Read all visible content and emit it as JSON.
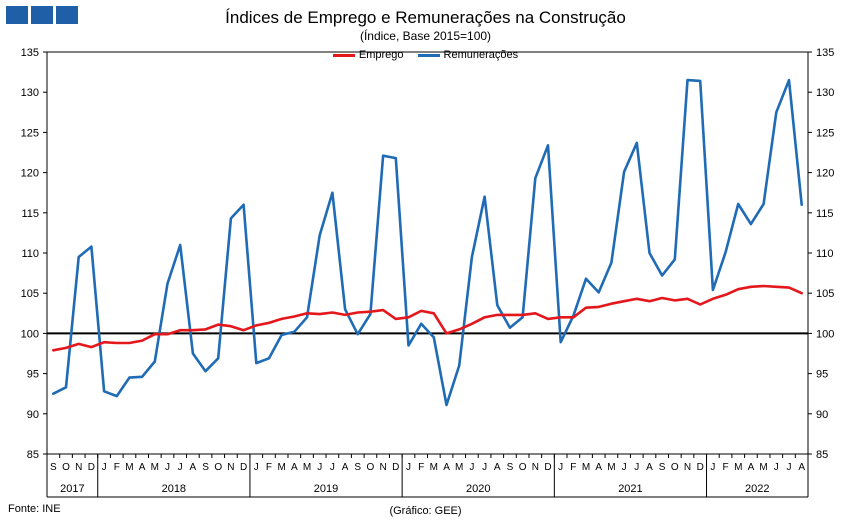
{
  "header": {
    "title": "Índices de Emprego e Remunerações na Construção",
    "subtitle": "(Índice, Base 2015=100)",
    "logo_colors": [
      "#1f5fa8",
      "#1f5fa8",
      "#1f5fa8"
    ]
  },
  "footer": {
    "source": "Fonte: INE",
    "credit": "(Gráfico: GEE)"
  },
  "chart_data": {
    "type": "line",
    "title": "Índices de Emprego e Remunerações na Construção",
    "subtitle": "(Índice, Base 2015=100)",
    "ylim": [
      85,
      135
    ],
    "yticks": [
      85,
      90,
      95,
      100,
      105,
      110,
      115,
      120,
      125,
      130,
      135
    ],
    "reference_line": 100,
    "legend_placement": "top-center",
    "grid": false,
    "months": [
      "S",
      "O",
      "N",
      "D",
      "J",
      "F",
      "M",
      "A",
      "M",
      "J",
      "J",
      "A",
      "S",
      "O",
      "N",
      "D",
      "J",
      "F",
      "M",
      "A",
      "M",
      "J",
      "J",
      "A",
      "S",
      "O",
      "N",
      "D",
      "J",
      "F",
      "M",
      "A",
      "M",
      "J",
      "J",
      "A",
      "S",
      "O",
      "N",
      "D",
      "J",
      "F",
      "M",
      "A",
      "M",
      "J",
      "J",
      "A",
      "S",
      "O",
      "N",
      "D",
      "J",
      "F",
      "M",
      "A",
      "M",
      "J",
      "J",
      "A"
    ],
    "years": [
      {
        "label": "2017",
        "start": 0,
        "count": 4
      },
      {
        "label": "2018",
        "start": 4,
        "count": 12
      },
      {
        "label": "2019",
        "start": 16,
        "count": 12
      },
      {
        "label": "2020",
        "start": 28,
        "count": 12
      },
      {
        "label": "2021",
        "start": 40,
        "count": 12
      },
      {
        "label": "2022",
        "start": 52,
        "count": 8
      }
    ],
    "series": [
      {
        "name": "Emprego",
        "color": "#e3171c",
        "values": [
          97.9,
          98.2,
          98.7,
          98.3,
          98.9,
          98.8,
          98.8,
          99.1,
          99.9,
          99.9,
          100.4,
          100.4,
          100.5,
          101.1,
          100.9,
          100.4,
          101.0,
          101.3,
          101.8,
          102.1,
          102.5,
          102.4,
          102.6,
          102.3,
          102.6,
          102.7,
          102.9,
          101.8,
          102.0,
          102.8,
          102.5,
          100.0,
          100.5,
          101.2,
          102.0,
          102.3,
          102.3,
          102.3,
          102.5,
          101.8,
          102.0,
          102.0,
          103.2,
          103.3,
          103.7,
          104.0,
          104.3,
          104.0,
          104.4,
          104.1,
          104.3,
          103.6,
          104.3,
          104.8,
          105.5,
          105.8,
          105.9,
          105.8,
          105.7,
          105.0
        ]
      },
      {
        "name": "Remunerações",
        "color": "#1f6bb5",
        "values": [
          92.5,
          93.3,
          109.5,
          110.8,
          92.8,
          92.2,
          94.5,
          94.6,
          96.5,
          106.2,
          111.0,
          97.5,
          95.3,
          96.9,
          114.3,
          116.0,
          96.3,
          96.9,
          99.8,
          100.2,
          102.0,
          112.2,
          117.5,
          103.0,
          99.9,
          102.4,
          122.1,
          121.8,
          98.5,
          101.2,
          99.5,
          91.1,
          96.0,
          109.5,
          117.0,
          103.5,
          100.7,
          102.0,
          119.3,
          123.4,
          98.9,
          102.2,
          106.8,
          105.1,
          108.8,
          120.1,
          123.7,
          110.0,
          107.2,
          109.2,
          131.5,
          131.4,
          105.4,
          110.1,
          116.1,
          113.6,
          116.1,
          127.5,
          131.5,
          116.0
        ]
      }
    ]
  }
}
